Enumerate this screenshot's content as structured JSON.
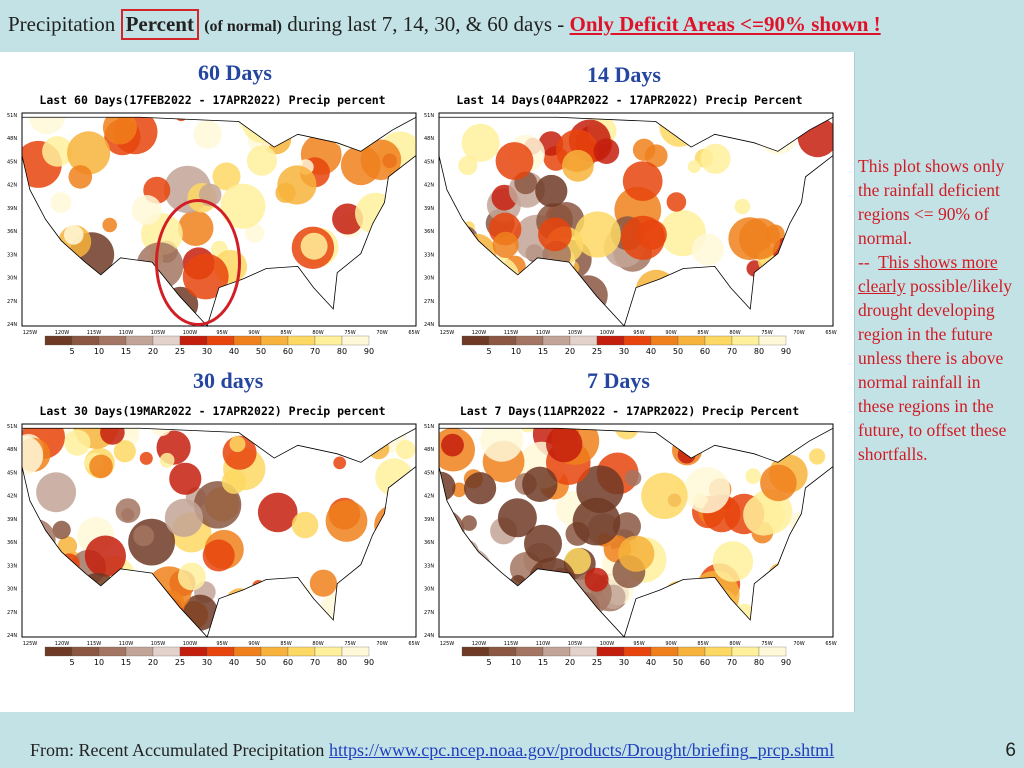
{
  "header": {
    "prefix": "Precipitation",
    "emphasis": "Percent",
    "qualifier": "(of normal)",
    "middle": "during last 7, 14, 30, & 60 days -",
    "warning": "Only Deficit Areas <=90% shown !"
  },
  "maps": [
    {
      "id": "60",
      "label": "60 Days",
      "caption": "Last 60 Days(17FEB2022 - 17APR2022) Precip percent",
      "intensity": 0.35
    },
    {
      "id": "14",
      "label": "14 Days",
      "caption": "Last 14 Days(04APR2022 - 17APR2022) Precip Percent",
      "intensity": 0.6
    },
    {
      "id": "30",
      "label": "30 days",
      "caption": "Last 30 Days(19MAR2022 - 17APR2022) Precip percent",
      "intensity": 0.5
    },
    {
      "id": "7",
      "label": "7 Days",
      "caption": "Last 7 Days(11APR2022 - 17APR2022) Precip Percent",
      "intensity": 0.75
    }
  ],
  "latitude_labels": [
    "51N",
    "48N",
    "45N",
    "42N",
    "39N",
    "36N",
    "33N",
    "30N",
    "27N",
    "24N"
  ],
  "longitude_labels": [
    "125W",
    "120W",
    "115W",
    "110W",
    "105W",
    "100W",
    "95W",
    "90W",
    "85W",
    "80W",
    "75W",
    "70W",
    "65W"
  ],
  "legend": {
    "values": [
      "5",
      "10",
      "15",
      "20",
      "25",
      "30",
      "40",
      "50",
      "60",
      "70",
      "80",
      "90"
    ],
    "colors": [
      "#6e3a26",
      "#8b5742",
      "#a37562",
      "#c3a597",
      "#e3d2cb",
      "#c41e0e",
      "#e8440d",
      "#f0801c",
      "#f7b33b",
      "#fdd863",
      "#fff09c",
      "#fff8d8"
    ]
  },
  "note": {
    "part1": "This plot shows only the rainfall deficient regions <= 90% of normal.",
    "dash": "--",
    "link": "This shows more clearly",
    "part2": "possible/likely drought developing region in the future unless there is above normal rainfall in these regions in the future, to offset these shortfalls."
  },
  "footer": {
    "prefix": "From: Recent Accumulated Precipitation",
    "url": "https://www.cpc.ncep.noaa.gov/products/Drought/briefing_prcp.shtml"
  },
  "page_number": "6"
}
